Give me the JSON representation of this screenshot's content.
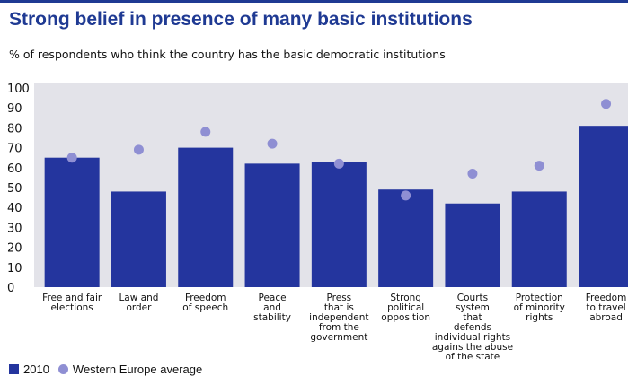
{
  "header": {
    "title": "Strong belief in presence of many basic institutions",
    "subtitle": "% of respondents who think the country has the basic democratic institutions"
  },
  "legend": {
    "bar_label": "2010",
    "dot_label": "Western Europe average"
  },
  "colors": {
    "accent": "#1f3a93",
    "panel": "#e3e3e9",
    "bar": "#24359e",
    "dot": "#8f8fd3"
  },
  "chart_data": {
    "type": "bar",
    "title": "Strong belief in presence of many basic institutions",
    "subtitle": "% of respondents who think the country has the basic democratic institutions",
    "ylim": [
      0,
      100
    ],
    "yticks": [
      0,
      10,
      20,
      30,
      40,
      50,
      60,
      70,
      80,
      90,
      100
    ],
    "grid": false,
    "legend_position": "bottom-left",
    "categories": [
      [
        "Free and fair",
        "elections"
      ],
      [
        "Law and",
        "order"
      ],
      [
        "Freedom",
        "of speech"
      ],
      [
        "Peace",
        "and",
        "stability"
      ],
      [
        "Press",
        "that is",
        "independent",
        "from the",
        "government"
      ],
      [
        "Strong",
        "political",
        "opposition"
      ],
      [
        "Courts",
        "system",
        "that",
        "defends",
        "individual rights",
        "agains the abuse",
        "of the state"
      ],
      [
        "Protection",
        "of minority",
        "rights"
      ],
      [
        "Freedom",
        "to travel",
        "abroad"
      ]
    ],
    "series": [
      {
        "name": "2010",
        "type": "bar",
        "values": [
          65,
          48,
          70,
          62,
          63,
          49,
          42,
          48,
          81
        ]
      },
      {
        "name": "Western Europe average",
        "type": "scatter",
        "values": [
          65,
          69,
          78,
          72,
          62,
          46,
          57,
          61,
          92
        ]
      }
    ]
  }
}
